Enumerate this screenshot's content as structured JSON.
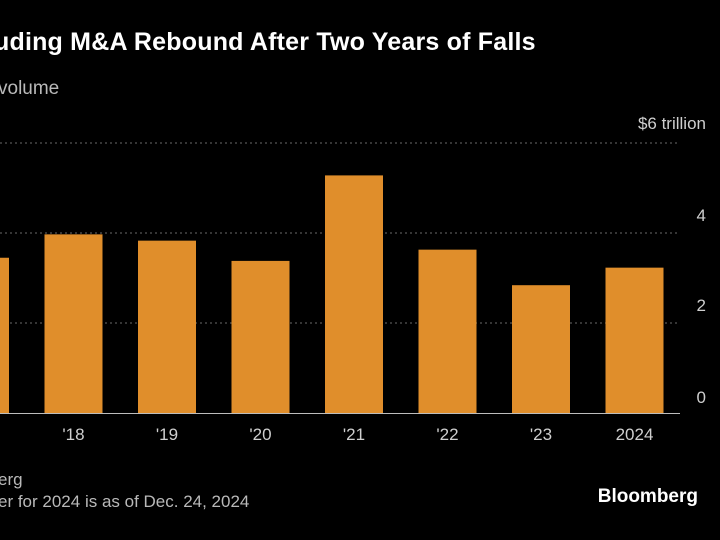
{
  "header": {
    "title": "uding M&A Rebound After Two Years of Falls",
    "subtitle": "volume"
  },
  "footer": {
    "source": "erg",
    "note": "er for 2024 is as of Dec. 24, 2024",
    "brand": "Bloomberg"
  },
  "colors": {
    "bar": "#e08e2b",
    "grid": "#6a6a6a",
    "background": "#000000"
  },
  "chart_data": {
    "type": "bar",
    "categories": [
      "",
      "'18",
      "'19",
      "'20",
      "'21",
      "'22",
      "'23",
      "2024"
    ],
    "values": [
      3.45,
      3.97,
      3.83,
      3.38,
      5.28,
      3.63,
      2.84,
      3.23
    ],
    "ylim": [
      0,
      6
    ],
    "yticks": [
      0,
      2,
      4,
      6
    ],
    "ytick_labels": [
      "0",
      "2",
      "4",
      "$6 trillion"
    ],
    "grid": true
  }
}
